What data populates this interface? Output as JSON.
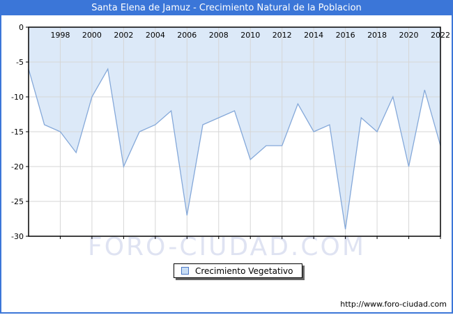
{
  "chart_data": {
    "type": "area",
    "title": "Santa Elena de Jamuz - Crecimiento Natural de la Poblacion",
    "xlabel": "",
    "ylabel": "",
    "x_range": [
      1996,
      2022
    ],
    "ylim": [
      -30,
      0
    ],
    "grid": true,
    "years": [
      1996,
      1997,
      1998,
      1999,
      2000,
      2001,
      2002,
      2003,
      2004,
      2005,
      2006,
      2007,
      2008,
      2009,
      2010,
      2011,
      2012,
      2013,
      2014,
      2015,
      2016,
      2017,
      2018,
      2019,
      2020,
      2021,
      2022
    ],
    "values": [
      -6,
      -14,
      -15,
      -18,
      -10,
      -6,
      -20,
      -15,
      -14,
      -12,
      -27,
      -14,
      -13,
      -12,
      -19,
      -17,
      -17,
      -11,
      -15,
      -14,
      -29,
      -13,
      -15,
      -10,
      -20,
      -9,
      -17
    ],
    "x_ticks": [
      1998,
      2000,
      2002,
      2004,
      2006,
      2008,
      2010,
      2012,
      2014,
      2016,
      2018,
      2020,
      2022
    ],
    "y_ticks": [
      0,
      -5,
      -10,
      -15,
      -20,
      -25,
      -30
    ],
    "legend": {
      "label": "Crecimiento Vegetativo",
      "position": "bottom-center"
    },
    "colors": {
      "header": "#3b76d8",
      "area_fill": "#dce9f8",
      "line": "#84a8d9",
      "grid": "#d6d6d6",
      "frame": "#000000",
      "tick_text": "#000000",
      "legend_swatch_fill": "#c9def5",
      "legend_swatch_border": "#4d79c7"
    }
  },
  "watermark": {
    "text": "FORO-CIUDAD.COM"
  },
  "footer": {
    "url": "http://www.foro-ciudad.com"
  }
}
